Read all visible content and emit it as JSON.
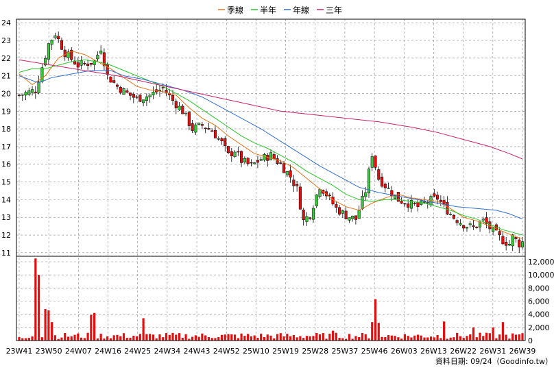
{
  "legend": [
    {
      "label": "季線",
      "color": "#e8741a"
    },
    {
      "label": "半年",
      "color": "#27c627"
    },
    {
      "label": "年線",
      "color": "#2f6fd0"
    },
    {
      "label": "三年",
      "color": "#c8206a"
    }
  ],
  "source_text": "資料日期: 09/24（Goodinfo.tw）",
  "colors": {
    "up_candle": "#3cc83c",
    "down_candle": "#e01010",
    "volume_bar": "#e01010",
    "grid": "#888888",
    "axis": "#000000"
  },
  "chart_data": [
    {
      "type": "candlestick",
      "price_ticks": [
        "24",
        "23",
        "22",
        "21",
        "20",
        "19",
        "18",
        "17",
        "16",
        "15",
        "14",
        "13",
        "12",
        "11"
      ],
      "ylim": [
        10.8,
        24.2
      ],
      "x_ticks": [
        "23W41",
        "23W50",
        "24W07",
        "24W16",
        "24W25",
        "24W34",
        "24W43",
        "24W52",
        "25W10",
        "25W19",
        "25W28",
        "25W37",
        "25W46",
        "26W03",
        "26W13",
        "26W22",
        "26W31",
        "26W39"
      ],
      "weeks": 155,
      "close_path": [
        [
          0,
          19.9
        ],
        [
          5,
          20.2
        ],
        [
          7,
          21.5
        ],
        [
          9,
          22.8
        ],
        [
          11,
          23.4
        ],
        [
          14,
          22.3
        ],
        [
          18,
          21.6
        ],
        [
          23,
          21.8
        ],
        [
          25,
          22.6
        ],
        [
          27,
          21.0
        ],
        [
          30,
          20.4
        ],
        [
          33,
          20.0
        ],
        [
          36,
          19.7
        ],
        [
          40,
          19.9
        ],
        [
          44,
          20.3
        ],
        [
          47,
          19.6
        ],
        [
          50,
          19.0
        ],
        [
          53,
          18.0
        ],
        [
          56,
          18.2
        ],
        [
          59,
          17.9
        ],
        [
          62,
          17.2
        ],
        [
          64,
          16.5
        ],
        [
          66,
          16.8
        ],
        [
          68,
          16.2
        ],
        [
          71,
          15.9
        ],
        [
          74,
          16.3
        ],
        [
          77,
          16.5
        ],
        [
          80,
          16.0
        ],
        [
          83,
          15.3
        ],
        [
          85,
          14.6
        ],
        [
          87,
          12.8
        ],
        [
          89,
          13.2
        ],
        [
          92,
          14.8
        ],
        [
          94,
          14.3
        ],
        [
          97,
          13.5
        ],
        [
          100,
          13.1
        ],
        [
          103,
          12.9
        ],
        [
          106,
          14.5
        ],
        [
          108,
          16.6
        ],
        [
          110,
          15.2
        ],
        [
          113,
          14.6
        ],
        [
          116,
          14.0
        ],
        [
          119,
          13.8
        ],
        [
          122,
          13.6
        ],
        [
          125,
          13.9
        ],
        [
          128,
          14.1
        ],
        [
          130,
          13.6
        ],
        [
          133,
          13.0
        ],
        [
          136,
          12.6
        ],
        [
          139,
          12.4
        ],
        [
          142,
          12.8
        ],
        [
          145,
          12.2
        ],
        [
          148,
          11.7
        ],
        [
          150,
          11.5
        ],
        [
          151,
          11.9
        ],
        [
          153,
          11.5
        ],
        [
          154,
          11.6
        ]
      ],
      "volume": {
        "ylim": [
          0,
          12000
        ],
        "ticks": [
          "12,000",
          "10,000",
          "8,000",
          "6,000",
          "4,000",
          "2,000",
          "0"
        ],
        "spikes": [
          [
            5,
            12500
          ],
          [
            6,
            10000
          ],
          [
            8,
            4800
          ],
          [
            9,
            4600
          ],
          [
            10,
            2800
          ],
          [
            22,
            3900
          ],
          [
            23,
            4200
          ],
          [
            38,
            3400
          ],
          [
            96,
            1500
          ],
          [
            108,
            2800
          ],
          [
            109,
            6300
          ],
          [
            110,
            2700
          ],
          [
            130,
            2900
          ],
          [
            139,
            2000
          ],
          [
            145,
            2000
          ],
          [
            148,
            2800
          ]
        ],
        "base": 800
      },
      "series": [
        {
          "name": "季線",
          "points": [
            [
              0,
              21.1
            ],
            [
              4,
              20.5
            ],
            [
              8,
              21.0
            ],
            [
              12,
              22.0
            ],
            [
              16,
              22.4
            ],
            [
              20,
              22.2
            ],
            [
              24,
              21.8
            ],
            [
              28,
              21.4
            ],
            [
              32,
              20.9
            ],
            [
              36,
              20.4
            ],
            [
              40,
              20.2
            ],
            [
              44,
              20.1
            ],
            [
              48,
              19.9
            ],
            [
              52,
              19.2
            ],
            [
              56,
              18.6
            ],
            [
              60,
              18.2
            ],
            [
              64,
              17.6
            ],
            [
              68,
              17.1
            ],
            [
              72,
              16.6
            ],
            [
              76,
              16.4
            ],
            [
              80,
              16.2
            ],
            [
              84,
              15.8
            ],
            [
              88,
              15.2
            ],
            [
              92,
              14.6
            ],
            [
              96,
              14.0
            ],
            [
              100,
              13.6
            ],
            [
              104,
              13.4
            ],
            [
              108,
              13.8
            ],
            [
              112,
              14.1
            ],
            [
              116,
              14.3
            ],
            [
              120,
              14.1
            ],
            [
              124,
              14.0
            ],
            [
              128,
              13.9
            ],
            [
              132,
              13.5
            ],
            [
              136,
              13.0
            ],
            [
              140,
              12.8
            ],
            [
              144,
              12.5
            ],
            [
              148,
              12.2
            ],
            [
              152,
              11.9
            ],
            [
              154,
              11.8
            ]
          ]
        },
        {
          "name": "半年",
          "points": [
            [
              0,
              21.2
            ],
            [
              4,
              21.4
            ],
            [
              8,
              21.4
            ],
            [
              12,
              21.6
            ],
            [
              16,
              21.8
            ],
            [
              20,
              21.9
            ],
            [
              24,
              21.8
            ],
            [
              28,
              21.6
            ],
            [
              32,
              21.3
            ],
            [
              36,
              21.0
            ],
            [
              40,
              20.7
            ],
            [
              44,
              20.4
            ],
            [
              48,
              20.0
            ],
            [
              52,
              19.6
            ],
            [
              56,
              19.1
            ],
            [
              60,
              18.6
            ],
            [
              64,
              18.1
            ],
            [
              68,
              17.6
            ],
            [
              72,
              17.2
            ],
            [
              76,
              16.9
            ],
            [
              80,
              16.5
            ],
            [
              84,
              16.1
            ],
            [
              88,
              15.6
            ],
            [
              92,
              15.2
            ],
            [
              96,
              14.8
            ],
            [
              100,
              14.3
            ],
            [
              104,
              14.0
            ],
            [
              108,
              13.9
            ],
            [
              112,
              14.0
            ],
            [
              116,
              14.0
            ],
            [
              120,
              13.9
            ],
            [
              124,
              13.8
            ],
            [
              128,
              13.6
            ],
            [
              132,
              13.4
            ],
            [
              136,
              13.1
            ],
            [
              140,
              12.9
            ],
            [
              144,
              12.6
            ],
            [
              148,
              12.3
            ],
            [
              152,
              12.1
            ],
            [
              154,
              12.0
            ]
          ]
        },
        {
          "name": "年線",
          "points": [
            [
              0,
              21.0
            ],
            [
              6,
              20.6
            ],
            [
              10,
              20.9
            ],
            [
              16,
              21.1
            ],
            [
              22,
              21.3
            ],
            [
              28,
              21.3
            ],
            [
              32,
              21.0
            ],
            [
              38,
              20.8
            ],
            [
              44,
              20.5
            ],
            [
              50,
              20.2
            ],
            [
              56,
              19.8
            ],
            [
              62,
              19.2
            ],
            [
              68,
              18.6
            ],
            [
              74,
              18.0
            ],
            [
              80,
              17.3
            ],
            [
              86,
              16.6
            ],
            [
              92,
              15.9
            ],
            [
              98,
              15.3
            ],
            [
              104,
              14.7
            ],
            [
              110,
              14.4
            ],
            [
              116,
              14.2
            ],
            [
              122,
              14.0
            ],
            [
              128,
              13.8
            ],
            [
              134,
              13.6
            ],
            [
              140,
              13.5
            ],
            [
              146,
              13.4
            ],
            [
              150,
              13.2
            ],
            [
              154,
              12.9
            ]
          ]
        },
        {
          "name": "三年",
          "points": [
            [
              0,
              21.9
            ],
            [
              10,
              21.6
            ],
            [
              20,
              21.3
            ],
            [
              30,
              21.0
            ],
            [
              40,
              20.6
            ],
            [
              50,
              20.2
            ],
            [
              60,
              19.8
            ],
            [
              70,
              19.4
            ],
            [
              80,
              19.0
            ],
            [
              90,
              18.8
            ],
            [
              100,
              18.6
            ],
            [
              110,
              18.4
            ],
            [
              120,
              18.1
            ],
            [
              128,
              17.8
            ],
            [
              136,
              17.4
            ],
            [
              144,
              17.0
            ],
            [
              150,
              16.6
            ],
            [
              154,
              16.3
            ]
          ]
        }
      ]
    }
  ]
}
